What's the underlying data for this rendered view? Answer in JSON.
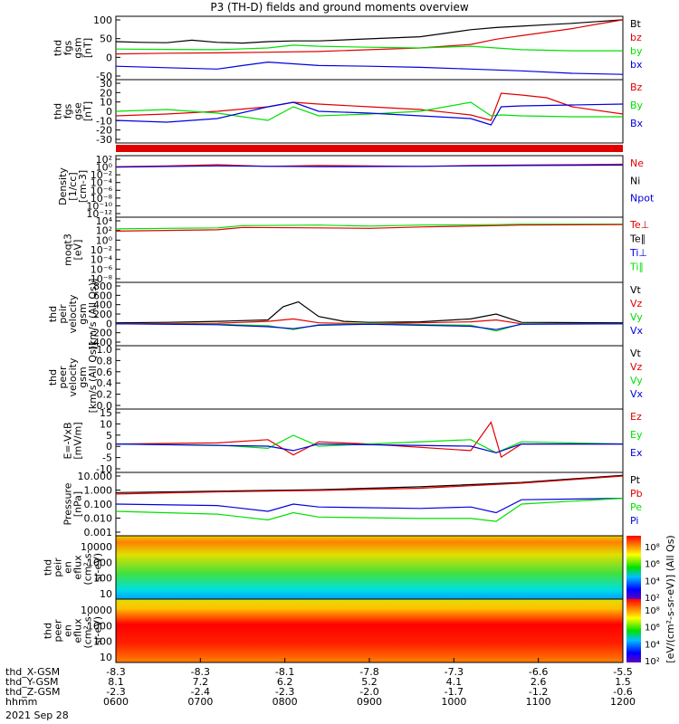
{
  "title": "P3 (TH-D) fields and ground moments overview",
  "date_label": "2021 Sep 28",
  "colors": {
    "black": "#000000",
    "red": "#e00000",
    "green": "#00e000",
    "blue": "#0000e0"
  },
  "chart_data": [
    {
      "type": "line",
      "panel": "fgs-gsm",
      "ylabel": [
        "thd",
        "fgs",
        "gsm",
        "[nT]"
      ],
      "yticks": [
        "100",
        "50",
        "0",
        "-50"
      ],
      "legend": [
        "Bt",
        "bz",
        "by",
        "bx"
      ],
      "series": [
        {
          "name": "Bt",
          "color": "black",
          "x": [
            0,
            0.05,
            0.1,
            0.15,
            0.2,
            0.25,
            0.3,
            0.35,
            0.4,
            0.5,
            0.6,
            0.7,
            0.75,
            0.8,
            0.85,
            0.9,
            0.95,
            1.0
          ],
          "y": [
            38,
            36,
            35,
            42,
            36,
            34,
            38,
            40,
            40,
            46,
            52,
            72,
            78,
            82,
            86,
            90,
            95,
            100
          ]
        },
        {
          "name": "bz",
          "color": "red",
          "x": [
            0,
            0.1,
            0.2,
            0.3,
            0.4,
            0.5,
            0.6,
            0.7,
            0.75,
            0.8,
            0.85,
            0.9,
            0.95,
            1.0
          ],
          "y": [
            3,
            5,
            6,
            8,
            10,
            15,
            20,
            30,
            45,
            55,
            65,
            75,
            88,
            100
          ]
        },
        {
          "name": "by",
          "color": "green",
          "x": [
            0,
            0.1,
            0.2,
            0.3,
            0.35,
            0.4,
            0.5,
            0.6,
            0.7,
            0.75,
            0.8,
            0.9,
            1.0
          ],
          "y": [
            17,
            16,
            15,
            20,
            28,
            25,
            22,
            20,
            25,
            20,
            15,
            12,
            12
          ]
        },
        {
          "name": "bx",
          "color": "blue",
          "x": [
            0,
            0.1,
            0.2,
            0.25,
            0.3,
            0.35,
            0.4,
            0.5,
            0.6,
            0.7,
            0.8,
            0.9,
            1.0
          ],
          "y": [
            -32,
            -36,
            -40,
            -30,
            -20,
            -25,
            -30,
            -32,
            -35,
            -40,
            -45,
            -52,
            -55
          ]
        }
      ]
    },
    {
      "type": "line",
      "panel": "fgs-gse",
      "ylabel": [
        "thd",
        "fgs",
        "gse",
        "[nT]"
      ],
      "yticks": [
        "30",
        "20",
        "10",
        "0",
        "-10",
        "-20",
        "-30"
      ],
      "legend": [
        "Bz",
        "By",
        "Bx"
      ],
      "series": [
        {
          "name": "Bz",
          "color": "red",
          "x": [
            0,
            0.1,
            0.2,
            0.3,
            0.35,
            0.4,
            0.5,
            0.6,
            0.7,
            0.74,
            0.76,
            0.8,
            0.85,
            0.9,
            1.0
          ],
          "y": [
            -5,
            -3,
            0,
            5,
            10,
            8,
            5,
            2,
            -4,
            -10,
            20,
            18,
            15,
            5,
            -3
          ]
        },
        {
          "name": "By",
          "color": "green",
          "x": [
            0,
            0.1,
            0.2,
            0.3,
            0.35,
            0.4,
            0.5,
            0.6,
            0.7,
            0.74,
            0.76,
            0.8,
            0.9,
            1.0
          ],
          "y": [
            0,
            2,
            -2,
            -10,
            5,
            -5,
            -3,
            0,
            10,
            -5,
            -4,
            -5,
            -6,
            -6
          ]
        },
        {
          "name": "Bx",
          "color": "blue",
          "x": [
            0,
            0.1,
            0.2,
            0.3,
            0.35,
            0.4,
            0.5,
            0.6,
            0.7,
            0.74,
            0.76,
            0.8,
            0.9,
            1.0
          ],
          "y": [
            -10,
            -12,
            -8,
            5,
            10,
            0,
            -2,
            -5,
            -8,
            -15,
            5,
            6,
            7,
            8
          ]
        }
      ]
    },
    {
      "type": "line",
      "panel": "density",
      "ylabel": [
        "Density",
        "[1/cc]",
        "[cm-3]"
      ],
      "yticks": [
        "10²",
        "10⁰",
        "10⁻²",
        "10⁻⁴",
        "10⁻⁶",
        "10⁻⁸",
        "10⁻¹⁰",
        "10⁻¹²"
      ],
      "legend": [
        "Ne",
        "Ni",
        "Npot"
      ],
      "series": [
        {
          "name": "Ne",
          "color": "red",
          "x": [
            0,
            0.1,
            0.2,
            0.3,
            0.4,
            0.5,
            0.6,
            0.7,
            0.8,
            0.9,
            1.0
          ],
          "y": [
            0.3,
            0.5,
            0.8,
            0.4,
            0.6,
            0.5,
            0.4,
            0.6,
            0.7,
            0.8,
            0.9
          ]
        },
        {
          "name": "Npot",
          "color": "blue",
          "x": [
            0,
            0.2,
            0.4,
            0.6,
            0.8,
            1.0
          ],
          "y": [
            0.2,
            0.5,
            0.3,
            0.4,
            0.6,
            0.7
          ]
        }
      ]
    },
    {
      "type": "line",
      "panel": "moqt3",
      "ylabel": [
        "moqt3",
        "[eV]"
      ],
      "yticks": [
        "10⁴",
        "10²",
        "10⁰",
        "10⁻²",
        "10⁻⁴",
        "10⁻⁶",
        "10⁻⁸"
      ],
      "legend": [
        "Te⊥",
        "Te∥",
        "Ti⊥",
        "Ti∥"
      ],
      "series": [
        {
          "name": "Ti∥",
          "color": "green",
          "x": [
            0,
            0.2,
            0.25,
            0.4,
            0.5,
            0.6,
            0.75,
            0.8,
            1.0
          ],
          "y": [
            2.5,
            2.7,
            3.2,
            3.3,
            3.1,
            3.3,
            3.4,
            3.5,
            3.5
          ]
        },
        {
          "name": "Te⊥",
          "color": "red",
          "x": [
            0,
            0.2,
            0.25,
            0.4,
            0.5,
            0.6,
            0.75,
            0.8,
            1.0
          ],
          "y": [
            2,
            2.3,
            2.8,
            2.7,
            2.6,
            2.9,
            3.2,
            3.3,
            3.4
          ]
        }
      ]
    },
    {
      "type": "line",
      "panel": "peir-velocity",
      "ylabel": [
        "thd",
        "peir",
        "velocity",
        "gsm",
        "[km/s (All Qs)]"
      ],
      "yticks": [
        "800",
        "600",
        "400",
        "200",
        "0",
        "-200",
        "-400"
      ],
      "legend": [
        "Vt",
        "Vz",
        "Vy",
        "Vx"
      ],
      "series": [
        {
          "name": "Vt",
          "color": "black",
          "x": [
            0,
            0.1,
            0.2,
            0.3,
            0.33,
            0.36,
            0.4,
            0.45,
            0.5,
            0.6,
            0.7,
            0.75,
            0.8,
            1.0
          ],
          "y": [
            20,
            30,
            50,
            80,
            350,
            450,
            150,
            50,
            30,
            40,
            100,
            200,
            30,
            20
          ]
        },
        {
          "name": "Vz",
          "color": "red",
          "x": [
            0,
            0.2,
            0.3,
            0.35,
            0.4,
            0.5,
            0.7,
            0.75,
            0.8,
            1.0
          ],
          "y": [
            0,
            10,
            50,
            100,
            20,
            0,
            40,
            80,
            0,
            0
          ]
        },
        {
          "name": "Vy",
          "color": "green",
          "x": [
            0,
            0.2,
            0.3,
            0.35,
            0.4,
            0.5,
            0.7,
            0.75,
            0.8,
            1.0
          ],
          "y": [
            0,
            -10,
            -40,
            -120,
            -20,
            0,
            -30,
            -150,
            0,
            0
          ]
        },
        {
          "name": "Vx",
          "color": "blue",
          "x": [
            0,
            0.2,
            0.3,
            0.35,
            0.4,
            0.5,
            0.7,
            0.75,
            0.8,
            1.0
          ],
          "y": [
            0,
            -20,
            -60,
            -100,
            -30,
            -10,
            -50,
            -120,
            -10,
            0
          ]
        }
      ]
    },
    {
      "type": "line",
      "panel": "peer-velocity",
      "ylabel": [
        "thd",
        "peer",
        "velocity",
        "gsm",
        "[km/s (All Qs)]"
      ],
      "yticks": [
        "1.0",
        "0.8",
        "0.6",
        "0.4",
        "0.2",
        "0.0"
      ],
      "legend": [
        "Vt",
        "Vz",
        "Vy",
        "Vx"
      ],
      "series": []
    },
    {
      "type": "line",
      "panel": "efield",
      "ylabel": [
        "E=-VxB",
        "[mV/m]"
      ],
      "yticks": [
        "15",
        "10",
        "5",
        "0",
        "-5",
        "-10"
      ],
      "legend": [
        "Ez",
        "Ey",
        "Ex"
      ],
      "series": [
        {
          "name": "Ez",
          "color": "red",
          "x": [
            0,
            0.2,
            0.3,
            0.35,
            0.4,
            0.5,
            0.7,
            0.74,
            0.76,
            0.8,
            1.0
          ],
          "y": [
            0,
            0.5,
            2,
            -5,
            1,
            0,
            -3,
            10,
            -6,
            0,
            0
          ]
        },
        {
          "name": "Ey",
          "color": "green",
          "x": [
            0,
            0.2,
            0.3,
            0.35,
            0.4,
            0.5,
            0.7,
            0.75,
            0.8,
            1.0
          ],
          "y": [
            0,
            -0.5,
            -2,
            4,
            -1,
            0,
            2,
            -4,
            1,
            0
          ]
        },
        {
          "name": "Ex",
          "color": "blue",
          "x": [
            0,
            0.3,
            0.35,
            0.4,
            0.7,
            0.75,
            0.8,
            1.0
          ],
          "y": [
            0,
            -1,
            -3,
            0,
            -1,
            -4,
            0,
            0
          ]
        }
      ]
    },
    {
      "type": "line",
      "panel": "pressure",
      "ylabel": [
        "Pressure",
        "[nPa]"
      ],
      "yticks": [
        "10.000",
        "1.000",
        "0.100",
        "0.010",
        "0.001"
      ],
      "legend": [
        "Pt",
        "Pb",
        "Pe",
        "Pi"
      ],
      "series": [
        {
          "name": "Pt",
          "color": "black",
          "x": [
            0,
            0.2,
            0.4,
            0.6,
            0.8,
            1.0
          ],
          "y": [
            -0.2,
            -0.1,
            0.0,
            0.2,
            0.5,
            1.0
          ]
        },
        {
          "name": "Pb",
          "color": "red",
          "x": [
            0,
            0.2,
            0.4,
            0.6,
            0.8,
            1.0
          ],
          "y": [
            -0.3,
            -0.15,
            -0.05,
            0.1,
            0.45,
            0.95
          ]
        },
        {
          "name": "Pi",
          "color": "blue",
          "x": [
            0,
            0.2,
            0.3,
            0.35,
            0.4,
            0.6,
            0.7,
            0.75,
            0.8,
            1.0
          ],
          "y": [
            -1.0,
            -1.1,
            -1.5,
            -1.0,
            -1.2,
            -1.3,
            -1.2,
            -1.6,
            -0.7,
            -0.6
          ]
        },
        {
          "name": "Pe",
          "color": "green",
          "x": [
            0,
            0.2,
            0.3,
            0.35,
            0.4,
            0.6,
            0.7,
            0.75,
            0.8,
            1.0
          ],
          "y": [
            -1.5,
            -1.7,
            -2.1,
            -1.6,
            -1.9,
            -2.0,
            -2.0,
            -2.2,
            -1.0,
            -0.6
          ]
        }
      ]
    },
    {
      "type": "heatmap",
      "panel": "peir-en-eflux",
      "ylabel": [
        "thd",
        "peir",
        "en",
        "eflux",
        "(cm²-s-",
        "sr-eV)"
      ],
      "yticks": [
        "10000",
        "1000",
        "100",
        "10"
      ],
      "colorbar_ticks": [
        "10⁸",
        "10⁶",
        "10⁴",
        "10²"
      ]
    },
    {
      "type": "heatmap",
      "panel": "peer-en-eflux",
      "ylabel": [
        "thd",
        "peer",
        "en",
        "eflux",
        "(cm²-s-",
        "sr-eV)"
      ],
      "yticks": [
        "10000",
        "1000",
        "100",
        "10"
      ],
      "colorbar_ticks": [
        "10⁸",
        "10⁶",
        "10⁴",
        "10²"
      ]
    }
  ],
  "colorbar_label": "[eV/(cm²-s-sr-eV)] (All Qs)",
  "ephemeris": {
    "labels": [
      "thd_X-GSM",
      "thd_Y-GSM",
      "thd_Z-GSM",
      "hhmm"
    ],
    "rows": [
      [
        "-8.3",
        "-8.3",
        "-8.1",
        "-7.8",
        "-7.3",
        "-6.6",
        "-5.5"
      ],
      [
        "8.1",
        "7.2",
        "6.2",
        "5.2",
        "4.1",
        "2.6",
        "1.5"
      ],
      [
        "-2.3",
        "-2.4",
        "-2.3",
        "-2.0",
        "-1.7",
        "-1.2",
        "-0.6"
      ],
      [
        "0600",
        "0700",
        "0800",
        "0900",
        "1000",
        "1100",
        "1200"
      ]
    ]
  }
}
